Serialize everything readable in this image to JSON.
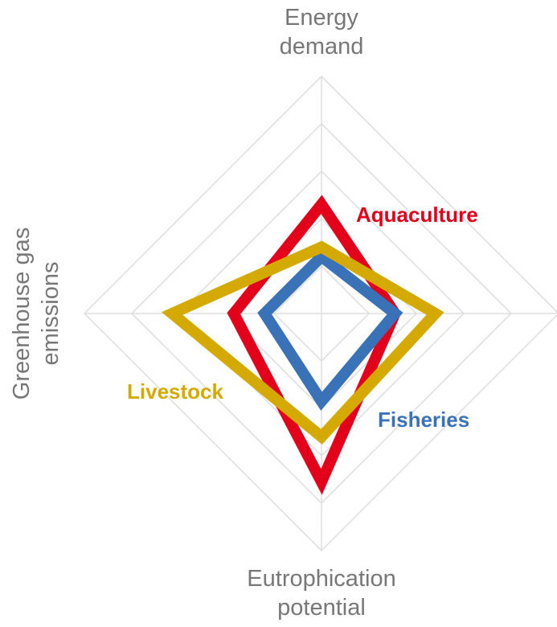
{
  "chart_data": {
    "type": "radar",
    "categories": [
      "Energy demand",
      null,
      "Eutrophication potential",
      "Greenhouse gas emissions"
    ],
    "ylim": [
      0,
      5
    ],
    "yticks": [
      1,
      2,
      3,
      4,
      5
    ],
    "grid": true,
    "series": [
      {
        "name": "Aquaculture",
        "color": "#e3001b",
        "values": [
          2.3,
          1.55,
          3.55,
          1.85
        ]
      },
      {
        "name": "Fisheries",
        "color": "#3a72b8",
        "values": [
          1.2,
          1.55,
          1.85,
          1.2
        ]
      },
      {
        "name": "Livestock",
        "color": "#d4aa00",
        "values": [
          1.4,
          2.4,
          2.6,
          3.15
        ]
      }
    ]
  }
}
